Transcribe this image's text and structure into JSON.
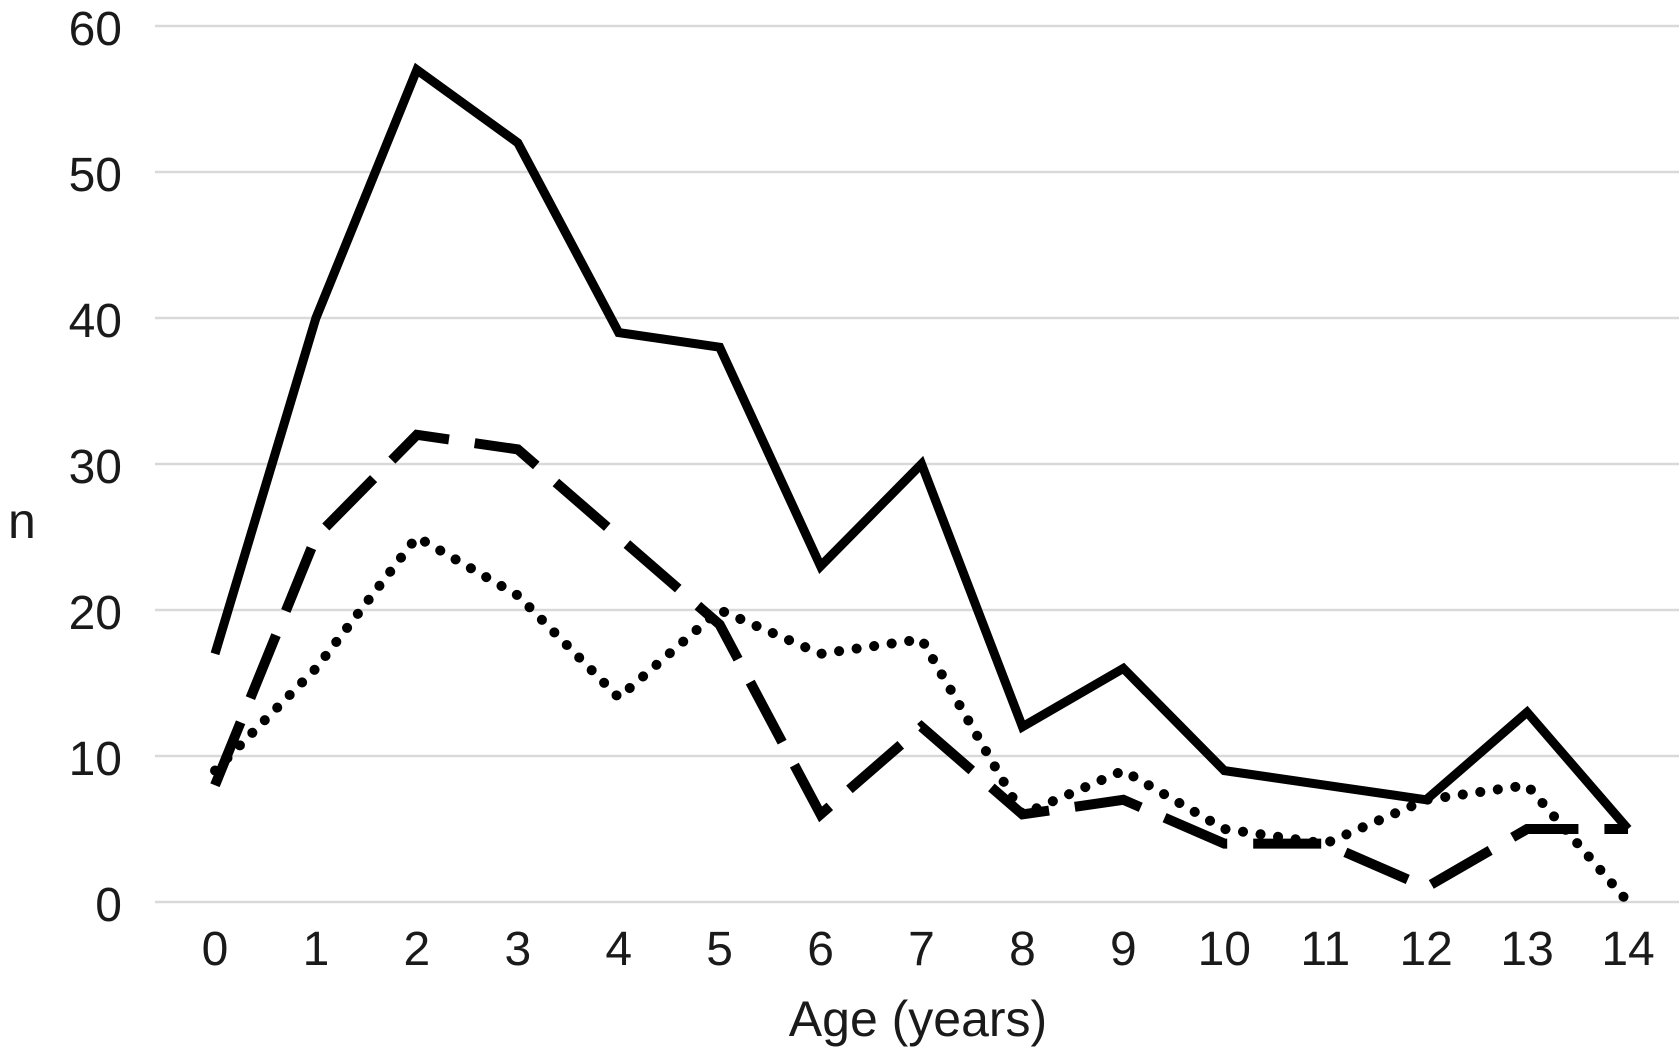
{
  "chart_data": {
    "type": "line",
    "title": "",
    "xlabel": "Age (years)",
    "ylabel": "n",
    "x": [
      0,
      1,
      2,
      3,
      4,
      5,
      6,
      7,
      8,
      9,
      10,
      11,
      12,
      13,
      14
    ],
    "xticks": [
      "0",
      "1",
      "2",
      "3",
      "4",
      "5",
      "6",
      "7",
      "8",
      "9",
      "10",
      "11",
      "12",
      "13",
      "14"
    ],
    "yticks": [
      "0",
      "10",
      "20",
      "30",
      "40",
      "50",
      "60"
    ],
    "ylim": [
      0,
      60
    ],
    "xlim": [
      0,
      14
    ],
    "grid": "horizontal",
    "legend": "none",
    "series": [
      {
        "name": "solid-line",
        "style": "solid",
        "values": [
          17,
          40,
          57,
          52,
          39,
          38,
          23,
          30,
          12,
          16,
          9,
          8,
          7,
          13,
          5
        ]
      },
      {
        "name": "dashed-line",
        "style": "dashed",
        "values": [
          8,
          25,
          32,
          31,
          25,
          19,
          6,
          12,
          6,
          7,
          4,
          4,
          1,
          5,
          5
        ]
      },
      {
        "name": "dotted-line",
        "style": "dotted",
        "values": [
          9,
          16,
          25,
          21,
          14,
          20,
          17,
          18,
          6,
          9,
          5,
          4,
          7,
          8,
          0
        ]
      }
    ],
    "colors": {
      "line": "#000000",
      "grid": "#d9d9d9",
      "text": "#1a1a1a",
      "background": "#ffffff"
    }
  }
}
